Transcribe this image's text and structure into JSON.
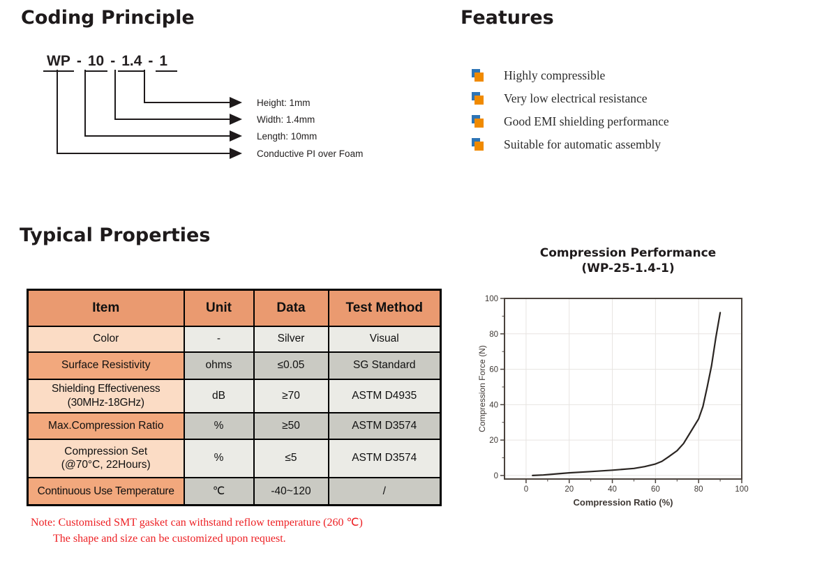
{
  "coding": {
    "title": "Coding Principle",
    "parts": [
      "WP",
      "10",
      "1.4",
      "1"
    ],
    "separator": "-",
    "levels": [
      {
        "code": "1",
        "label": "Height: 1mm"
      },
      {
        "code": "1.4",
        "label": "Width: 1.4mm"
      },
      {
        "code": "10",
        "label": "Length: 10mm"
      },
      {
        "code": "WP",
        "label": "Conductive PI over Foam"
      }
    ]
  },
  "features": {
    "title": "Features",
    "bullet": {
      "front_color": "#F08A00",
      "back_color": "#2E75B6"
    },
    "items": [
      "Highly compressible",
      "Very low electrical resistance",
      "Good EMI shielding performance",
      "Suitable for automatic assembly"
    ]
  },
  "properties": {
    "title": "Typical Properties",
    "table": {
      "headers": [
        "Item",
        "Unit",
        "Data",
        "Test Method"
      ],
      "rows": [
        {
          "item_lines": [
            "Color"
          ],
          "unit": "-",
          "data": "Silver",
          "method": "Visual",
          "shade": "light"
        },
        {
          "item_lines": [
            "Surface Resistivity"
          ],
          "unit": "ohms",
          "data": "≤0.05",
          "method": "SG Standard",
          "shade": "dark"
        },
        {
          "item_lines": [
            "Shielding Effectiveness",
            "(30MHz-18GHz)"
          ],
          "unit": "dB",
          "data": "≥70",
          "method": "ASTM D4935",
          "shade": "light"
        },
        {
          "item_lines": [
            "Max.Compression Ratio"
          ],
          "unit": "%",
          "data": "≥50",
          "method": "ASTM D3574",
          "shade": "dark"
        },
        {
          "item_lines": [
            "Compression Set",
            "(@70°C, 22Hours)"
          ],
          "unit": "%",
          "data": "≤5",
          "method": "ASTM D3574",
          "shade": "light"
        },
        {
          "item_lines": [
            "Continuous Use Temperature"
          ],
          "unit": "℃",
          "data": "-40~120",
          "method": "/",
          "shade": "dark"
        }
      ],
      "colors": {
        "header_bg": "#EA9A70",
        "item_light": "#FBDCC5",
        "item_dark": "#F2A87D",
        "value_light": "#EBEBE6",
        "value_dark": "#CACAC3",
        "border": "#000000"
      }
    },
    "note": {
      "line1": "Note: Customised SMT gasket can withstand reflow temperature (260 ℃)",
      "line2": "The shape and size can be customized upon request.",
      "color": "#ED2024"
    }
  },
  "chart_data": {
    "type": "line",
    "title": "Compression Performance",
    "subtitle": "(WP-25-1.4-1)",
    "xlabel": "Compression Ratio (%)",
    "ylabel": "Compression Force (N)",
    "xlim": [
      -10,
      100
    ],
    "ylim": [
      -2,
      100
    ],
    "xticks": [
      0,
      20,
      40,
      60,
      80,
      100
    ],
    "yticks": [
      0,
      20,
      40,
      60,
      80,
      100
    ],
    "minor_step": 10,
    "grid": true,
    "legend": "none",
    "colors": {
      "frame": "#4a423c",
      "grid": "#e7e4e1",
      "curve": "#2a2522",
      "label": "#3e3834"
    },
    "series": [
      {
        "name": "WP-25-1.4-1",
        "x": [
          3,
          8,
          15,
          20,
          30,
          40,
          50,
          55,
          60,
          63,
          66,
          70,
          73,
          76,
          80,
          82,
          84,
          86,
          88,
          90
        ],
        "y": [
          0,
          0.3,
          1.0,
          1.5,
          2.2,
          3.0,
          4.0,
          5.0,
          6.5,
          8.0,
          10.5,
          14,
          18,
          24,
          32,
          39,
          50,
          62,
          78,
          92
        ]
      }
    ]
  }
}
